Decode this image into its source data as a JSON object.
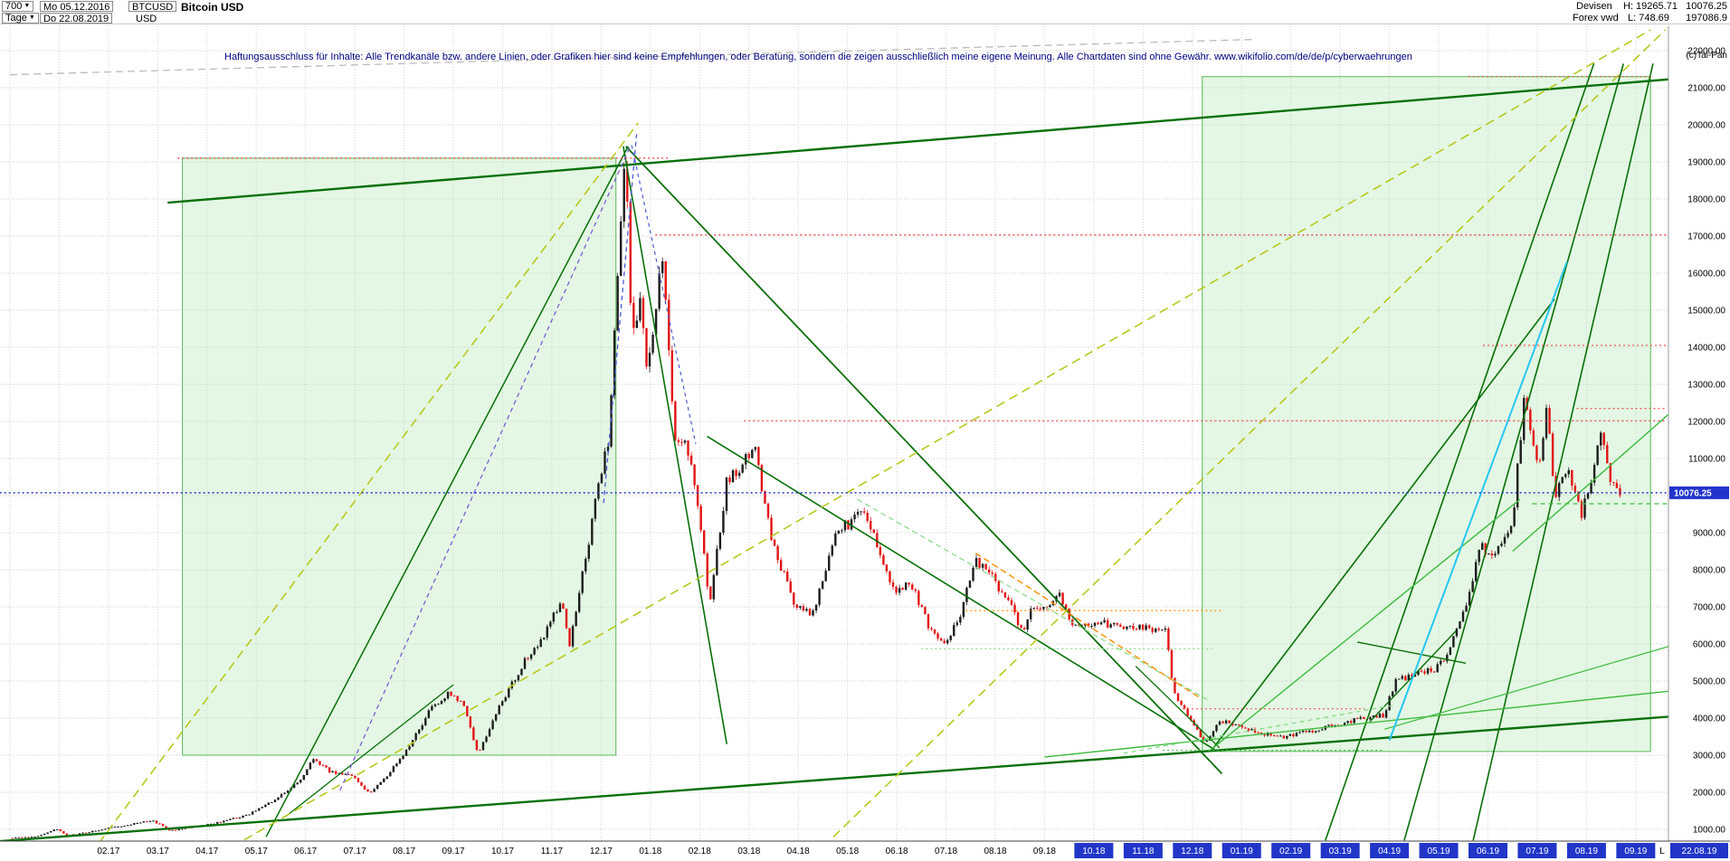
{
  "icons": {
    "dropdown": "▼"
  },
  "header": {
    "period": "700",
    "timeframe": "Tage",
    "start_date": "Mo 05.12.2016",
    "end_date": "Do 22.08.2019",
    "symbol": "BTCUSD",
    "currency": "USD",
    "instrument_name": "Bitcoin USD",
    "market": "Devisen",
    "source": "Forex vwd",
    "high_label": "H: 19265.71",
    "low_label": "L: 748.69",
    "last_price": "10076.25",
    "volume": "197086.9",
    "copyright": "(c)Tai-Pan"
  },
  "disclaimer": "Haftungsausschluss für Inhalte: Alle Trendkanäle bzw. andere Linien, oder Grafiken hier sind keine Empfehlungen, oder Beratung, sondern die zeigen ausschließlich meine eigene Meinung. Alle Chartdaten sind ohne Gewähr.  www.wikifolio.com/de/de/p/cyberwaehrungen",
  "chart_data": {
    "type": "candlestick",
    "title": "Bitcoin USD",
    "symbol": "BTCUSD",
    "timeframe": "daily",
    "grid": true,
    "y_axis": {
      "min": 1000,
      "max": 22000,
      "step": 1000,
      "side": "right"
    },
    "x_axis": {
      "months": [
        {
          "t": 2,
          "label": "02.17",
          "hl": false
        },
        {
          "t": 3,
          "label": "03.17",
          "hl": false
        },
        {
          "t": 4,
          "label": "04.17",
          "hl": false
        },
        {
          "t": 5,
          "label": "05.17",
          "hl": false
        },
        {
          "t": 6,
          "label": "06.17",
          "hl": false
        },
        {
          "t": 7,
          "label": "07.17",
          "hl": false
        },
        {
          "t": 8,
          "label": "08.17",
          "hl": false
        },
        {
          "t": 9,
          "label": "09.17",
          "hl": false
        },
        {
          "t": 10,
          "label": "10.17",
          "hl": false
        },
        {
          "t": 11,
          "label": "11.17",
          "hl": false
        },
        {
          "t": 12,
          "label": "12.17",
          "hl": false
        },
        {
          "t": 13,
          "label": "01.18",
          "hl": false
        },
        {
          "t": 14,
          "label": "02.18",
          "hl": false
        },
        {
          "t": 15,
          "label": "03.18",
          "hl": false
        },
        {
          "t": 16,
          "label": "04.18",
          "hl": false
        },
        {
          "t": 17,
          "label": "05.18",
          "hl": false
        },
        {
          "t": 18,
          "label": "06.18",
          "hl": false
        },
        {
          "t": 19,
          "label": "07.18",
          "hl": false
        },
        {
          "t": 20,
          "label": "08.18",
          "hl": false
        },
        {
          "t": 21,
          "label": "09.18",
          "hl": false
        },
        {
          "t": 22,
          "label": "10.18",
          "hl": true
        },
        {
          "t": 23,
          "label": "11.18",
          "hl": true
        },
        {
          "t": 24,
          "label": "12.18",
          "hl": true
        },
        {
          "t": 25,
          "label": "01.19",
          "hl": true
        },
        {
          "t": 26,
          "label": "02.19",
          "hl": true
        },
        {
          "t": 27,
          "label": "03.19",
          "hl": true
        },
        {
          "t": 28,
          "label": "04.19",
          "hl": true
        },
        {
          "t": 29,
          "label": "05.19",
          "hl": true
        },
        {
          "t": 30,
          "label": "06.19",
          "hl": true
        },
        {
          "t": 31,
          "label": "07.19",
          "hl": true
        },
        {
          "t": 32,
          "label": "08.19",
          "hl": true
        },
        {
          "t": 33,
          "label": "09.19",
          "hl": true
        }
      ],
      "end_marker": "L",
      "end_date_label": "22.08.19"
    },
    "current_price": 10076.25,
    "session": {
      "high": 19265.71,
      "low": 748.69
    },
    "price_anchors": [
      [
        0.0,
        770
      ],
      [
        0.5,
        790
      ],
      [
        0.95,
        1020
      ],
      [
        1.15,
        830
      ],
      [
        1.6,
        930
      ],
      [
        2.1,
        1060
      ],
      [
        2.9,
        1240
      ],
      [
        3.25,
        960
      ],
      [
        3.8,
        1090
      ],
      [
        4.2,
        1180
      ],
      [
        4.8,
        1380
      ],
      [
        5.4,
        1800
      ],
      [
        5.9,
        2350
      ],
      [
        6.15,
        2900
      ],
      [
        6.5,
        2550
      ],
      [
        6.9,
        2480
      ],
      [
        7.3,
        1980
      ],
      [
        7.7,
        2500
      ],
      [
        8.1,
        3250
      ],
      [
        8.55,
        4250
      ],
      [
        8.9,
        4650
      ],
      [
        9.2,
        4350
      ],
      [
        9.5,
        3050
      ],
      [
        9.95,
        4350
      ],
      [
        10.5,
        5650
      ],
      [
        10.9,
        6350
      ],
      [
        11.2,
        7200
      ],
      [
        11.35,
        5900
      ],
      [
        11.9,
        9900
      ],
      [
        12.15,
        11500
      ],
      [
        12.35,
        16500
      ],
      [
        12.5,
        19200
      ],
      [
        12.62,
        14000
      ],
      [
        12.8,
        15500
      ],
      [
        12.95,
        13200
      ],
      [
        13.1,
        15000
      ],
      [
        13.22,
        16900
      ],
      [
        13.5,
        11600
      ],
      [
        13.8,
        11200
      ],
      [
        14.05,
        9000
      ],
      [
        14.2,
        6950
      ],
      [
        14.55,
        10400
      ],
      [
        14.9,
        10900
      ],
      [
        15.1,
        11400
      ],
      [
        15.5,
        8600
      ],
      [
        15.95,
        7000
      ],
      [
        16.3,
        6850
      ],
      [
        16.8,
        9100
      ],
      [
        17.1,
        9300
      ],
      [
        17.3,
        9750
      ],
      [
        17.95,
        7450
      ],
      [
        18.3,
        7650
      ],
      [
        18.65,
        6450
      ],
      [
        18.95,
        5950
      ],
      [
        19.25,
        6650
      ],
      [
        19.6,
        8250
      ],
      [
        19.95,
        7800
      ],
      [
        20.3,
        7050
      ],
      [
        20.55,
        6350
      ],
      [
        20.75,
        6950
      ],
      [
        21.05,
        7050
      ],
      [
        21.3,
        7350
      ],
      [
        21.55,
        6500
      ],
      [
        21.95,
        6600
      ],
      [
        22.5,
        6480
      ],
      [
        23.1,
        6400
      ],
      [
        23.45,
        6320
      ],
      [
        23.65,
        4550
      ],
      [
        23.95,
        4050
      ],
      [
        24.25,
        3300
      ],
      [
        24.55,
        3950
      ],
      [
        24.9,
        3800
      ],
      [
        25.3,
        3620
      ],
      [
        25.9,
        3480
      ],
      [
        26.3,
        3620
      ],
      [
        26.9,
        3820
      ],
      [
        27.3,
        3940
      ],
      [
        27.9,
        4080
      ],
      [
        28.1,
        4950
      ],
      [
        28.55,
        5250
      ],
      [
        28.95,
        5320
      ],
      [
        29.2,
        5750
      ],
      [
        29.55,
        7100
      ],
      [
        29.85,
        8650
      ],
      [
        30.0,
        8350
      ],
      [
        30.2,
        8550
      ],
      [
        30.5,
        9350
      ],
      [
        30.75,
        12800
      ],
      [
        30.9,
        11300
      ],
      [
        31.05,
        11000
      ],
      [
        31.2,
        12400
      ],
      [
        31.35,
        9900
      ],
      [
        31.6,
        10750
      ],
      [
        31.9,
        9550
      ],
      [
        32.1,
        10450
      ],
      [
        32.3,
        11750
      ],
      [
        32.5,
        10250
      ],
      [
        32.72,
        10076
      ]
    ],
    "colors": {
      "up_candle": "#1c1c1c",
      "down_candle": "#e21414",
      "dgreen": "#087008",
      "lgreen": "#3dbb3d",
      "pgreen": "#85d885",
      "yellow": "#b8c81e",
      "cyan": "#26c6f2",
      "violet": "#7b5cd6",
      "blue": "#4a5bd8",
      "orange": "#ff8c00",
      "red": "#f04040",
      "gray": "#bbbbbb",
      "price": "#2233cc",
      "axis_highlight_bg": "#2136c8",
      "box_fill": "rgba(150,225,150,0.26)",
      "box_stroke": "#58b858"
    },
    "overlays": {
      "boxes": [
        [
          3.5,
          3000,
          12.3,
          19100
        ],
        [
          24.2,
          3100,
          33.3,
          21300
        ]
      ],
      "lines": [
        [
          3.2,
          17900,
          34.8,
          21350,
          "dgreen",
          2.4,
          null
        ],
        [
          -0.2,
          680,
          34.8,
          4150,
          "dgreen",
          2.4,
          null
        ],
        [
          5.2,
          800,
          12.55,
          19420,
          "dgreen",
          1.5,
          null
        ],
        [
          5.6,
          1350,
          9.0,
          4900,
          "dgreen",
          1.3,
          null
        ],
        [
          12.5,
          19420,
          24.6,
          2500,
          "dgreen",
          1.8,
          null
        ],
        [
          12.45,
          19420,
          14.55,
          3300,
          "dgreen",
          1.6,
          null
        ],
        [
          14.15,
          11600,
          24.45,
          3150,
          "dgreen",
          1.6,
          null
        ],
        [
          24.4,
          3150,
          31.35,
          15300,
          "dgreen",
          1.6,
          null
        ],
        [
          26.7,
          700,
          32.15,
          21650,
          "dgreen",
          1.6,
          null
        ],
        [
          28.3,
          700,
          32.75,
          21650,
          "dgreen",
          1.6,
          null
        ],
        [
          29.7,
          700,
          33.35,
          21650,
          "dgreen",
          1.6,
          null
        ],
        [
          27.35,
          6050,
          29.55,
          5480,
          "dgreen",
          1.4,
          null
        ],
        [
          27.6,
          3900,
          29.35,
          6350,
          "dgreen",
          1.4,
          null
        ],
        [
          22.85,
          5400,
          24.55,
          3200,
          "dgreen",
          1.3,
          null
        ],
        [
          21.0,
          2950,
          34.2,
          4800,
          "lgreen",
          1.4,
          null
        ],
        [
          24.35,
          3120,
          30.65,
          9900,
          "lgreen",
          1.4,
          null
        ],
        [
          30.5,
          8500,
          34.1,
          12700,
          "lgreen",
          1.4,
          null
        ],
        [
          27.9,
          3700,
          34.1,
          6100,
          "lgreen",
          1.2,
          null
        ],
        [
          17.2,
          9900,
          24.3,
          4500,
          "pgreen",
          1.2,
          "6,4"
        ],
        [
          22.6,
          3050,
          28.1,
          4350,
          "pgreen",
          1.2,
          "5,4"
        ],
        [
          1.8,
          620,
          12.75,
          20050,
          "yellow",
          1.6,
          "10,6"
        ],
        [
          4.5,
          520,
          33.3,
          22560,
          "yellow",
          1.6,
          "10,6"
        ],
        [
          16.5,
          520,
          33.6,
          22560,
          "yellow",
          1.6,
          "10,6"
        ],
        [
          6.7,
          2050,
          12.6,
          19450,
          "violet",
          1.3,
          "5,4"
        ],
        [
          12.05,
          9800,
          12.72,
          19750,
          "blue",
          1.3,
          "5,4"
        ],
        [
          12.62,
          19450,
          13.92,
          11400,
          "blue",
          1.2,
          "4,4"
        ],
        [
          28.0,
          3400,
          31.6,
          16300,
          "cyan",
          2,
          null
        ],
        [
          19.6,
          8450,
          24.15,
          4550,
          "orange",
          1.4,
          "7,4"
        ],
        [
          0.0,
          21350,
          25.2,
          22300,
          "gray",
          1.3,
          "8,5"
        ]
      ],
      "hlines": [
        [
          19100,
          3.4,
          13.4,
          "red",
          "2,3",
          1.2
        ],
        [
          17030,
          13.1,
          34.7,
          "red",
          "2,3",
          1.2
        ],
        [
          14050,
          29.9,
          34.35,
          "red",
          "2,3",
          1.2
        ],
        [
          12020,
          14.9,
          33.6,
          "red",
          "2,3",
          1.2
        ],
        [
          12350,
          31.8,
          33.6,
          "red",
          "2,3",
          1.1
        ],
        [
          21300,
          29.6,
          33.35,
          "red",
          "2,3",
          1.0
        ],
        [
          6900,
          19.4,
          24.6,
          "orange",
          "2,3",
          1.2
        ],
        [
          5870,
          18.5,
          24.4,
          "pgreen",
          "2,3",
          1.1
        ],
        [
          4250,
          23.8,
          27.5,
          "red",
          "2,3",
          1.1
        ],
        [
          3130,
          23.4,
          27.9,
          "lgreen",
          "2,3",
          1.1
        ],
        [
          9780,
          30.9,
          34.3,
          "lgreen",
          "5,4",
          1.2
        ],
        [
          10076.25,
          -0.3,
          34.95,
          "price",
          "2,3",
          1.5
        ]
      ]
    }
  }
}
